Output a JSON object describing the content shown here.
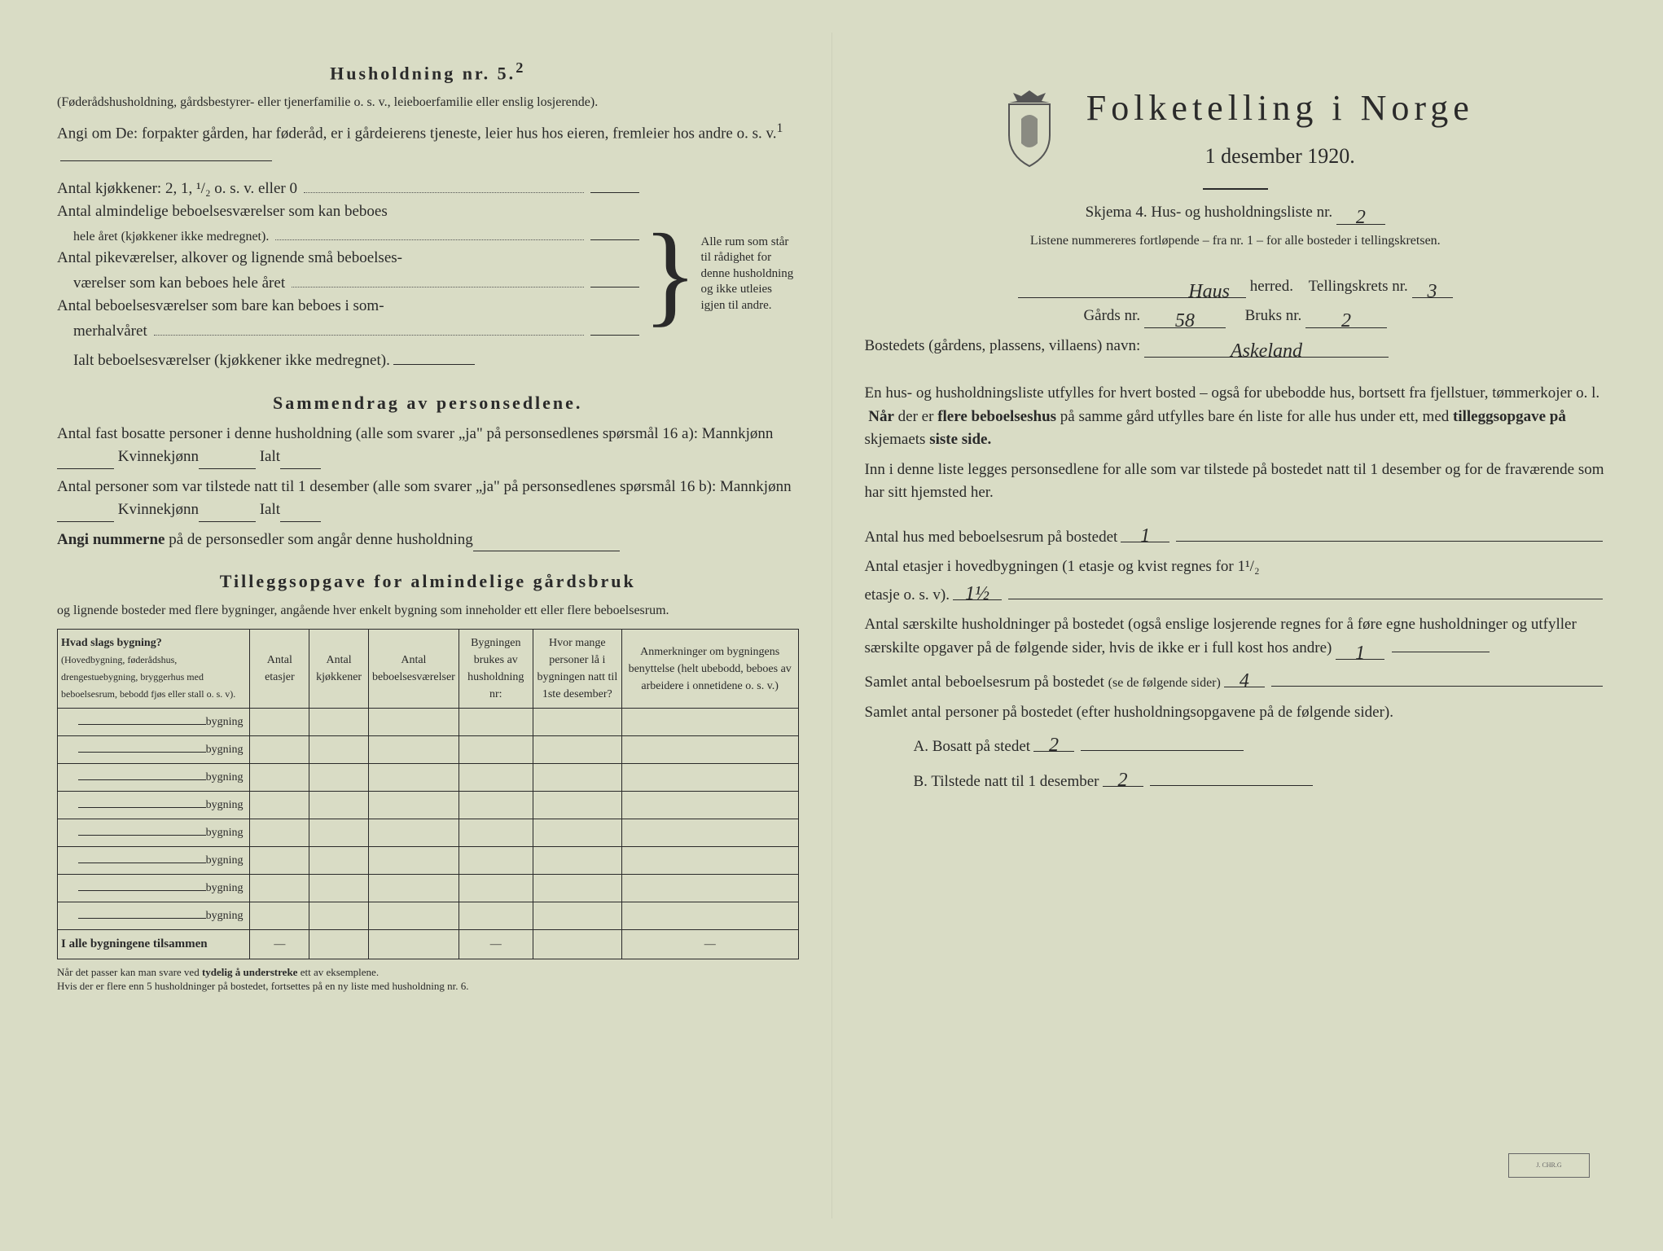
{
  "left": {
    "household_title": "Husholdning nr. 5.",
    "household_sup": "2",
    "household_sub": "(Føderådshusholdning, gårdsbestyrer- eller tjenerfamilie o. s. v., leieboerfamilie eller enslig losjerende).",
    "angi_line": "Angi om De:  forpakter gården, har føderåd, er i gårdeierens tjeneste, leier hus hos eieren, fremleier hos andre o. s. v.",
    "angi_sup": "1",
    "kjokken_label": "Antal kjøkkener: 2, 1, ¹/₂ o. s. v. eller 0",
    "alm_label1": "Antal almindelige beboelsesværelser som kan beboes",
    "alm_label2": "hele året (kjøkkener ikke medregnet).",
    "pike_label1": "Antal pikeværelser, alkover og lignende små beboelses-",
    "pike_label2": "værelser som kan beboes hele året",
    "sommer_label1": "Antal beboelsesværelser som bare kan beboes i som-",
    "sommer_label2": "merhalvåret",
    "ialt_label": "Ialt beboelsesværelser  (kjøkkener ikke medregnet).",
    "brace_text": "Alle rum som står til rådighet for denne husholdning og ikke utleies igjen til andre.",
    "sammendrag_title": "Sammendrag av personsedlene.",
    "fast_line": "Antal fast bosatte personer i denne husholdning (alle som svarer „ja\" på personsedlenes spørsmål 16 a): Mannkjønn",
    "kvinne": "Kvinnekjønn",
    "ialt": "Ialt",
    "tilstede_line": "Antal personer som var tilstede natt til 1 desember (alle som svarer „ja\" på personsedlenes spørsmål 16 b): Mannkjønn",
    "angi_num": "Angi nummerne på de personsedler som angår denne husholdning",
    "tillegg_title": "Tilleggsopgave for almindelige gårdsbruk",
    "tillegg_sub": "og lignende bosteder med flere bygninger, angående hver enkelt bygning som inneholder ett eller flere beboelsesrum.",
    "table": {
      "headers": [
        "Hvad slags bygning?\n(Hovedbygning, føderådshus, drengestuebygning, bryggerhus med beboelsesrum, bebodd fjøs eller stall o. s. v).",
        "Antal etasjer",
        "Antal kjøkkener",
        "Antal beboelsesværelser",
        "Bygningen brukes av husholdning nr:",
        "Hvor mange personer lå i bygningen natt til 1ste desember?",
        "Anmerkninger om bygningens benyttelse (helt ubebodd, beboes av arbeidere i onnetidene o. s. v.)"
      ],
      "row_label": "bygning",
      "rows": 8,
      "total_label": "I alle bygningene tilsammen"
    },
    "footnote": "Når det passer kan man svare ved tydelig å understreke ett av eksemplene.\nHvis der er flere enn 5 husholdninger på bostedet, fortsettes på en ny liste med husholdning nr. 6."
  },
  "right": {
    "title": "Folketelling i Norge",
    "date": "1 desember 1920.",
    "skjema": "Skjema 4.  Hus- og husholdningsliste nr.",
    "skjema_nr": "2",
    "listene": "Listene nummereres fortløpende – fra nr. 1 – for alle bosteder i tellingskretsen.",
    "herred_value": "Haus",
    "herred_label": "herred.",
    "tellingskrets_label": "Tellingskrets nr.",
    "tellingskrets_nr": "3",
    "gards_label": "Gårds nr.",
    "gards_nr": "58",
    "bruks_label": "Bruks nr.",
    "bruks_nr": "2",
    "bosted_label": "Bostedets (gårdens, plassens, villaens) navn:",
    "bosted_value": "Askeland",
    "para1": "En hus- og husholdningsliste utfylles for hvert bosted – også for ubebodde hus, bortsett fra fjellstuer, tømmerkojer o. l.  Når der er flere beboelseshus på samme gård utfylles bare én liste for alle hus under ett, med tilleggsopgave på skjemaets siste side.",
    "para2": "Inn i denne liste legges personsedlene for alle som var tilstede på bostedet natt til 1 desember og for de fraværende som har sitt hjemsted her.",
    "q1": "Antal hus med beboelsesrum på bostedet",
    "q1_val": "1",
    "q2a": "Antal etasjer i hovedbygningen (1 etasje og kvist regnes for 1¹/₂",
    "q2b": "etasje o. s. v).",
    "q2_val": "1½",
    "q3": "Antal særskilte husholdninger på bostedet (også enslige losjerende regnes for å føre egne husholdninger og utfyller særskilte opgaver på de følgende sider, hvis de ikke er i full kost hos andre)",
    "q3_val": "1",
    "q4": "Samlet antal beboelsesrum på bostedet (se de følgende sider)",
    "q4_val": "4",
    "q5": "Samlet antal personer på bostedet (efter husholdningsopgavene på de følgende sider).",
    "qa_label": "A.  Bosatt på stedet",
    "qa_val": "2",
    "qb_label": "B.  Tilstede natt til 1 desember",
    "qb_val": "2"
  }
}
